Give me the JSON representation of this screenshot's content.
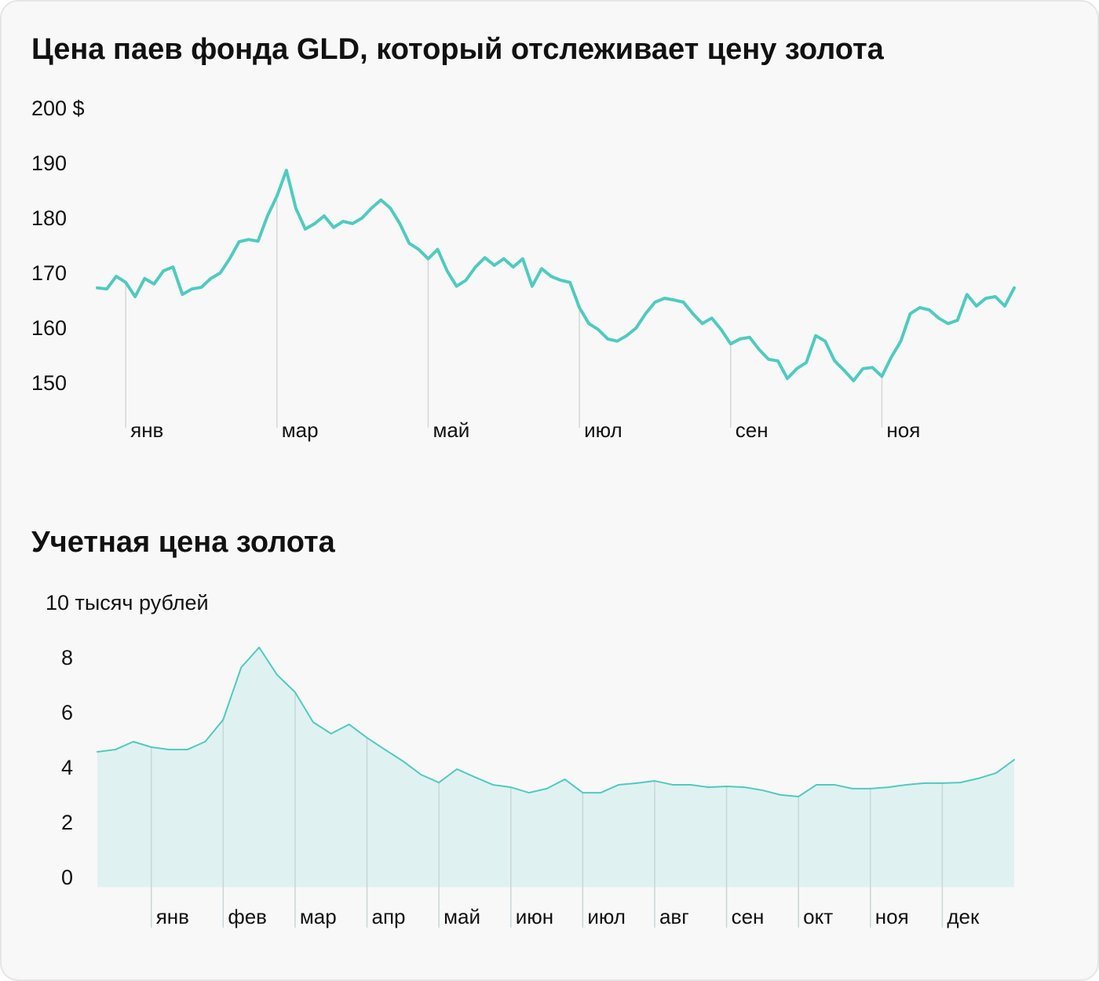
{
  "chart_data": [
    {
      "type": "line",
      "title": "Цена паев фонда GLD, который отслеживает цену золота",
      "categories": [
        null,
        null,
        null,
        "янв",
        null,
        null,
        null,
        null,
        null,
        null,
        null,
        null,
        null,
        null,
        null,
        null,
        null,
        null,
        null,
        "мар",
        null,
        null,
        null,
        null,
        null,
        null,
        null,
        null,
        null,
        null,
        null,
        null,
        null,
        null,
        null,
        "май",
        null,
        null,
        null,
        null,
        null,
        null,
        null,
        null,
        null,
        null,
        null,
        null,
        null,
        null,
        null,
        "июл",
        null,
        null,
        null,
        null,
        null,
        null,
        null,
        null,
        null,
        null,
        null,
        null,
        null,
        null,
        null,
        "сен",
        null,
        null,
        null,
        null,
        null,
        null,
        null,
        null,
        null,
        null,
        null,
        null,
        null,
        null,
        null,
        "ноя",
        null,
        null,
        null,
        null,
        null,
        null,
        null,
        null,
        null,
        null,
        null,
        null,
        null,
        null
      ],
      "series": [
        {
          "color": "#4fcbc0",
          "values": [
            167.6,
            167.4,
            169.7,
            168.6,
            166,
            169.3,
            168.3,
            170.7,
            171.4,
            166.4,
            167.4,
            167.7,
            169.3,
            170.3,
            172.9,
            176,
            176.4,
            176.1,
            180.7,
            184.3,
            189,
            182.1,
            178.3,
            179.3,
            180.7,
            178.6,
            179.7,
            179.3,
            180.3,
            182.1,
            183.6,
            182.1,
            179.3,
            175.7,
            174.6,
            172.9,
            174.6,
            170.7,
            167.9,
            169,
            171.4,
            173.1,
            171.7,
            172.9,
            171.4,
            172.9,
            167.9,
            171.1,
            169.7,
            169,
            168.6,
            164,
            161.1,
            160,
            158.3,
            157.9,
            158.9,
            160.3,
            162.9,
            165,
            165.7,
            165.4,
            165,
            162.9,
            161.1,
            162.1,
            160,
            157.4,
            158.3,
            158.6,
            156.4,
            154.6,
            154.3,
            151.1,
            152.9,
            154,
            158.9,
            157.9,
            154.3,
            152.6,
            150.7,
            152.9,
            153.1,
            151.5,
            155,
            157.9,
            162.9,
            164,
            163.6,
            162.1,
            161.1,
            161.7,
            166.4,
            164.3,
            165.7,
            166,
            164.3,
            167.6
          ]
        }
      ],
      "ylim": [
        143,
        200
      ],
      "yticks": [
        150,
        160,
        170,
        180,
        190,
        {
          "value": 200,
          "label": "200 $"
        }
      ]
    },
    {
      "type": "area",
      "title": "Учетная цена золота",
      "categories": [
        null,
        null,
        null,
        "янв",
        null,
        null,
        null,
        "фев",
        null,
        null,
        null,
        "мар",
        null,
        null,
        null,
        "апр",
        null,
        null,
        null,
        "май",
        null,
        null,
        null,
        "июн",
        null,
        null,
        null,
        "июл",
        null,
        null,
        null,
        "авг",
        null,
        null,
        null,
        "сен",
        null,
        null,
        null,
        "окт",
        null,
        null,
        null,
        "ноя",
        null,
        null,
        null,
        "дек",
        null,
        null,
        null,
        null
      ],
      "series": [
        {
          "color": "#4fcbc0",
          "fill": "#dff2f1",
          "values": [
            4.63,
            4.71,
            5.0,
            4.8,
            4.71,
            4.71,
            5.0,
            5.8,
            7.7,
            8.43,
            7.43,
            6.8,
            5.71,
            5.29,
            5.63,
            5.14,
            4.71,
            4.29,
            3.8,
            3.51,
            4.0,
            3.71,
            3.43,
            3.34,
            3.14,
            3.29,
            3.63,
            3.14,
            3.14,
            3.43,
            3.49,
            3.57,
            3.43,
            3.43,
            3.34,
            3.37,
            3.34,
            3.23,
            3.06,
            3.0,
            3.43,
            3.43,
            3.29,
            3.29,
            3.34,
            3.43,
            3.49,
            3.49,
            3.51,
            3.66,
            3.86,
            4.34
          ]
        }
      ],
      "ylim": [
        -0.3,
        10
      ],
      "yticks": [
        0,
        2,
        4,
        6,
        8,
        {
          "value": 10,
          "label": "10 тысяч рублей"
        }
      ]
    }
  ]
}
